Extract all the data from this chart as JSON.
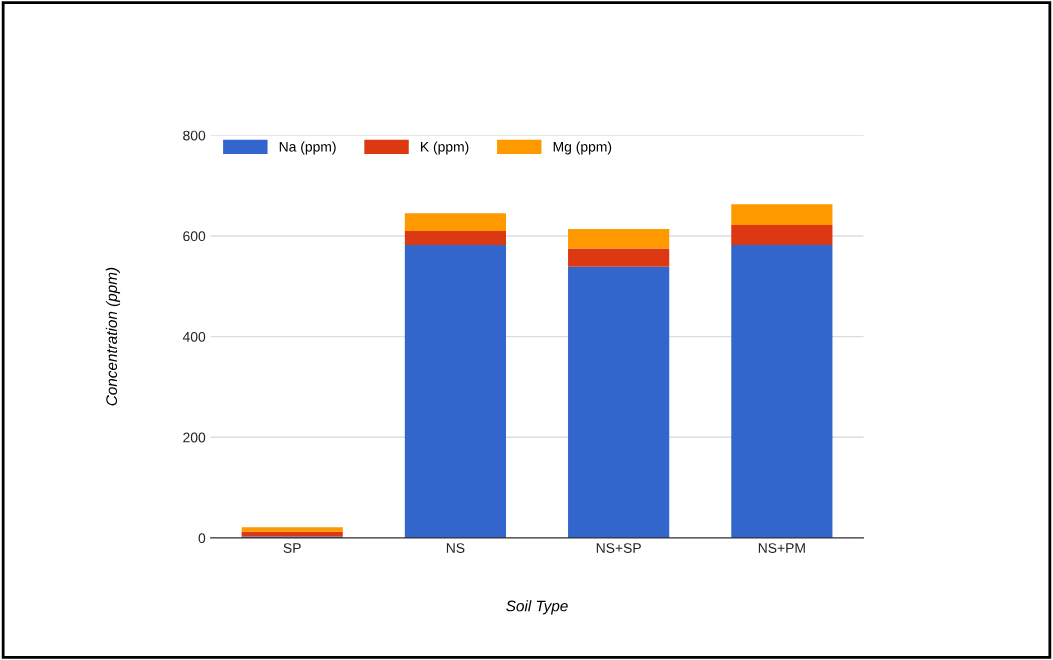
{
  "chart_data": {
    "type": "bar",
    "stacked": true,
    "xlabel": "Soil Type",
    "ylabel": "Concentration (ppm)",
    "categories": [
      "SP",
      "NS",
      "NS+SP",
      "NS+PM"
    ],
    "series": [
      {
        "name": "Na (ppm)",
        "color": "#3366cc",
        "values": [
          3,
          582,
          539,
          582
        ]
      },
      {
        "name": "K (ppm)",
        "color": "#dc3912",
        "values": [
          9,
          28,
          36,
          40
        ]
      },
      {
        "name": "Mg (ppm)",
        "color": "#ff9900",
        "values": [
          9,
          35,
          39,
          41
        ]
      }
    ],
    "ylim": [
      0,
      800
    ],
    "yticks": [
      0,
      200,
      400,
      600,
      800
    ],
    "grid": "y",
    "legend": "top left"
  }
}
